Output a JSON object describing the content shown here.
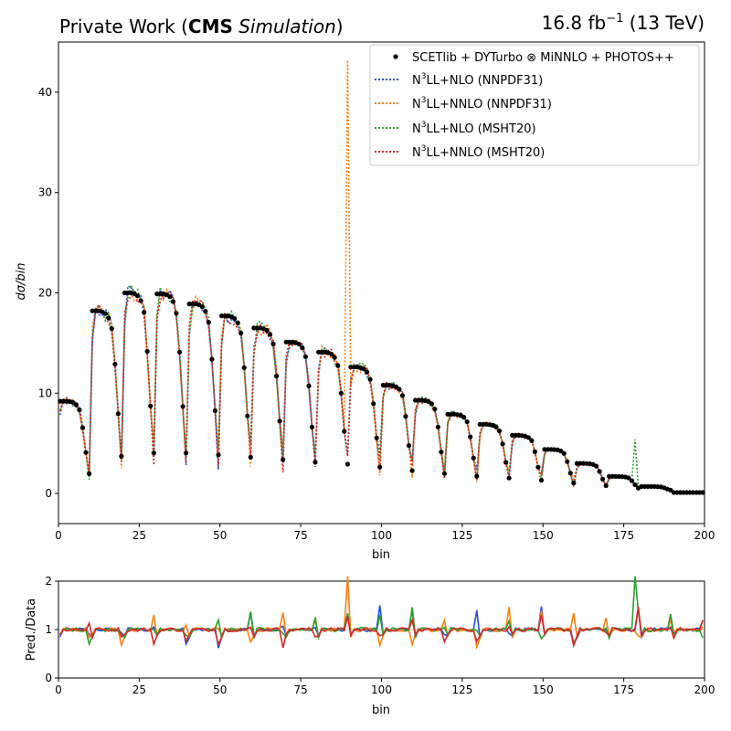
{
  "header": {
    "left_prefix": "Private Work (",
    "left_bold": "CMS",
    "left_italic": "Simulation",
    "left_suffix": ")",
    "right_lumi": "16.8 fb",
    "right_exp": "−1",
    "right_energy": "(13 TeV)"
  },
  "colors": {
    "data": "#000000",
    "nnpdf_nlo": "#1f4fe0",
    "nnpdf_nnlo": "#ff7f0e",
    "msht_nlo": "#2ca02c",
    "msht_nnlo": "#d62728"
  },
  "chart_data": [
    {
      "type": "line",
      "xlabel": "bin",
      "ylabel": "dσ/bin",
      "xlim": [
        0,
        200
      ],
      "ylim": [
        -3,
        45
      ],
      "xticks": [
        0,
        25,
        50,
        75,
        100,
        125,
        150,
        175,
        200
      ],
      "yticks": [
        0,
        10,
        20,
        30,
        40
      ],
      "legend_position": "top-right",
      "series": [
        {
          "name": "SCETlib + DYTurbo ⊗ MiNNLO + PHOTOS++",
          "style": "points"
        },
        {
          "name": "N3LL+NLO (NNPDF31)",
          "label_main": "N",
          "label_sup": "3",
          "label_rest": "LL+NLO (NNPDF31)",
          "style": "dotted"
        },
        {
          "name": "N3LL+NNLO (NNPDF31)",
          "label_main": "N",
          "label_sup": "3",
          "label_rest": "LL+NNLO (NNPDF31)",
          "style": "dotted",
          "spike": {
            "x": 89,
            "y": 43.2
          }
        },
        {
          "name": "N3LL+NLO (MSHT20)",
          "label_main": "N",
          "label_sup": "3",
          "label_rest": "LL+NLO (MSHT20)",
          "style": "dotted",
          "spike": {
            "x": 178,
            "y": 5.4
          }
        },
        {
          "name": "N3LL+NNLO (MSHT20)",
          "label_main": "N",
          "label_sup": "3",
          "label_rest": "LL+NNLO (MSHT20)",
          "style": "dotted"
        }
      ],
      "blocks": [
        {
          "start": 0,
          "top": 9.2
        },
        {
          "start": 10,
          "top": 18.2
        },
        {
          "start": 20,
          "top": 20.0
        },
        {
          "start": 30,
          "top": 19.9
        },
        {
          "start": 40,
          "top": 18.9
        },
        {
          "start": 50,
          "top": 17.7
        },
        {
          "start": 60,
          "top": 16.5
        },
        {
          "start": 70,
          "top": 15.1
        },
        {
          "start": 80,
          "top": 14.1
        },
        {
          "start": 90,
          "top": 12.6
        },
        {
          "start": 100,
          "top": 10.8
        },
        {
          "start": 110,
          "top": 9.3
        },
        {
          "start": 120,
          "top": 7.9
        },
        {
          "start": 130,
          "top": 6.9
        },
        {
          "start": 140,
          "top": 5.8
        },
        {
          "start": 150,
          "top": 4.4
        },
        {
          "start": 160,
          "top": 3.0
        },
        {
          "start": 170,
          "top": 1.7
        },
        {
          "start": 180,
          "top": 0.7
        },
        {
          "start": 190,
          "top": 0.1
        }
      ]
    },
    {
      "type": "line",
      "xlabel": "bin",
      "ylabel": "Pred./Data",
      "xlim": [
        0,
        200
      ],
      "ylim": [
        0,
        2
      ],
      "xticks": [
        0,
        25,
        50,
        75,
        100,
        125,
        150,
        175,
        200
      ],
      "yticks": [
        0,
        1,
        2
      ]
    }
  ]
}
